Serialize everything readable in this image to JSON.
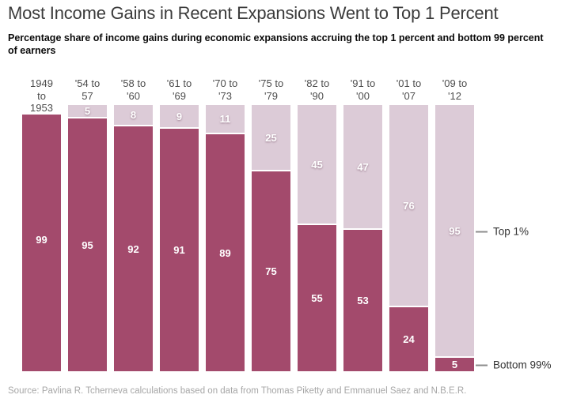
{
  "header": {
    "title": "Most Income Gains in Recent Expansions Went to Top 1 Percent",
    "subtitle": "Percentage share of income gains during economic expansions accruing the top 1 percent and bottom 99 percent\nof earners"
  },
  "annotations": {
    "top1": "Top 1%",
    "bottom99": "Bottom 99%"
  },
  "footer": {
    "source": "Source: Pavlina R. Tcherneva calculations based on data from Thomas Piketty and Emmanuel Saez and N.B.E.R."
  },
  "colors": {
    "top1_fill": "#dccbd7",
    "bottom99_fill": "#a34a6c",
    "separator": "#ffffff",
    "annotation_dash": "#8c8c8c"
  },
  "chart_data": {
    "type": "bar",
    "stacked": true,
    "title": "Most Income Gains in Recent Expansions Went to Top 1 Percent",
    "subtitle": "Percentage share of income gains during economic expansions accruing the top 1 percent and bottom 99 percent of earners",
    "unit": "percent of income gains during each expansion",
    "categories": [
      "1949 to 1953",
      "'54 to 57",
      "'58 to '60",
      "'61 to '69",
      "'70 to '73",
      "'75 to '79",
      "'82 to '90",
      "'91 to '00",
      "'01 to '07",
      "'09 to '12"
    ],
    "category_labels": [
      "1949\nto\n1953",
      "'54 to\n57",
      "'58 to\n'60",
      "'61 to\n'69",
      "'70 to\n'73",
      "'75 to\n'79",
      "'82 to\n'90",
      "'91 to\n'00",
      "'01 to\n'07",
      "'09 to\n'12"
    ],
    "series": [
      {
        "name": "Top 1%",
        "color": "#dccbd7",
        "values": [
          null,
          5,
          8,
          9,
          11,
          25,
          45,
          47,
          76,
          95
        ]
      },
      {
        "name": "Bottom 99%",
        "color": "#a34a6c",
        "values": [
          99,
          95,
          92,
          91,
          89,
          75,
          55,
          53,
          24,
          5
        ]
      }
    ],
    "ylim": [
      0,
      100
    ],
    "grid": false,
    "axis_ticks": "none",
    "legend": "right-edge annotations pointing at last bar segments",
    "value_labels": "centered inside each segment, hidden when value < 2"
  }
}
